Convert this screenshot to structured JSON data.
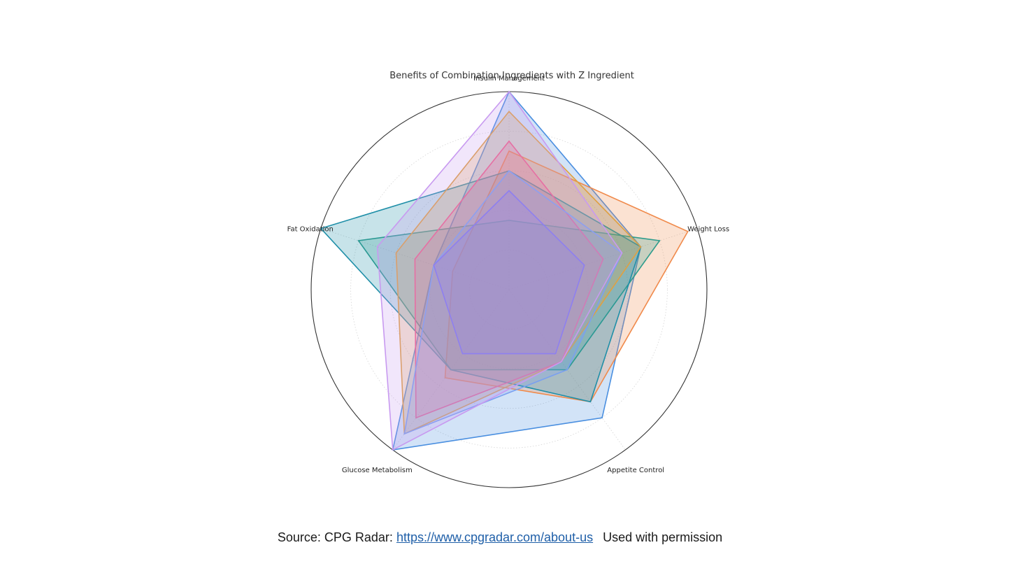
{
  "chart_data": {
    "type": "radar",
    "title": "Benefits of Combination Ingredients with Z Ingredient",
    "axes": [
      "Insulin Management",
      "Weight Loss",
      "Appetite Control",
      "Glucose Metabolism",
      "Fat Oxidation"
    ],
    "rlim": [
      0,
      10
    ],
    "grid": true,
    "legend": "none",
    "series": [
      {
        "color": "#4a8fe0",
        "values": [
          10,
          7,
          8,
          10,
          4
        ]
      },
      {
        "color": "#f08a4b",
        "values": [
          7,
          9.5,
          7,
          5.5,
          3
        ]
      },
      {
        "color": "#2e9c8c",
        "values": [
          3.5,
          8,
          5,
          5,
          8
        ]
      },
      {
        "color": "#1f8fa8",
        "values": [
          6,
          7,
          7,
          5,
          10
        ]
      },
      {
        "color": "#e0a040",
        "values": [
          9,
          7,
          4.5,
          9,
          6
        ]
      },
      {
        "color": "#f0608a",
        "values": [
          7.5,
          5,
          4.5,
          8,
          5
        ]
      },
      {
        "color": "#7aa0f0",
        "values": [
          6,
          6,
          5,
          9,
          4
        ]
      },
      {
        "color": "#c89af0",
        "values": [
          10,
          6,
          4.5,
          10,
          7
        ]
      },
      {
        "color": "#8e7ff0",
        "values": [
          5,
          4,
          4,
          4,
          4
        ]
      }
    ]
  },
  "footer": {
    "source_prefix": "Source: CPG Radar: ",
    "source_url": "https://www.cpgradar.com/about-us",
    "permission": "Used with permission"
  }
}
